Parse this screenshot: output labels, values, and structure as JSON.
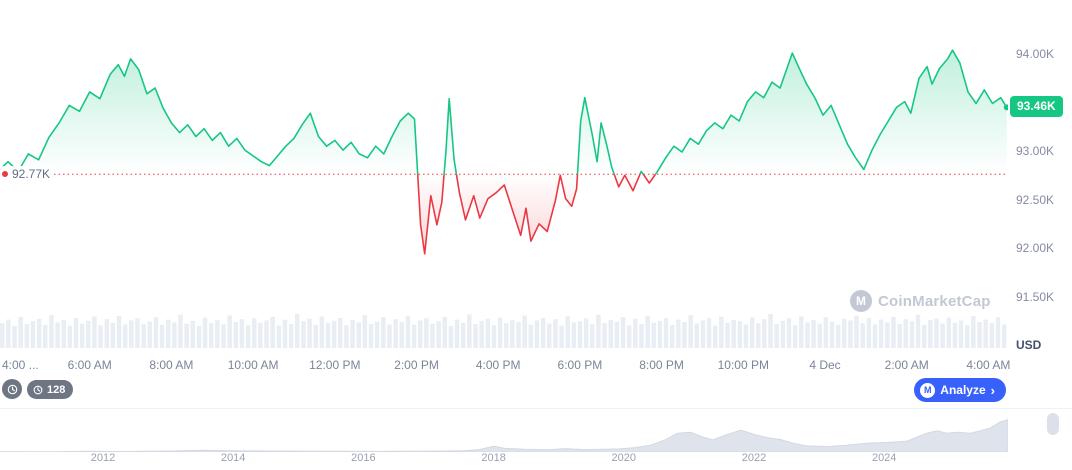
{
  "price": {
    "current_label": "93.46K",
    "current_value": 93.46,
    "baseline_label": "92.77K",
    "baseline_value": 92.77
  },
  "axis": {
    "y_labels": [
      "94.00K",
      "93.00K",
      "92.50K",
      "92.00K",
      "91.50K"
    ],
    "y_values": [
      94.0,
      93.0,
      92.5,
      92.0,
      91.5
    ],
    "unit_label": "USD",
    "x_labels": [
      "4:00 ...",
      "6:00 AM",
      "8:00 AM",
      "10:00 AM",
      "12:00 PM",
      "2:00 PM",
      "4:00 PM",
      "6:00 PM",
      "8:00 PM",
      "10:00 PM",
      "4 Dec",
      "2:00 AM",
      "4:00 AM"
    ]
  },
  "controls": {
    "history_count": "128",
    "analyze_label": "Analyze",
    "analyze_chevron": "›",
    "logo_letter": "M"
  },
  "watermark": {
    "text": "CoinMarketCap",
    "logo_letter": "M"
  },
  "colors": {
    "green": "#16C784",
    "red": "#EA3943",
    "blue": "#3861FB",
    "volume": "#E9EDF4",
    "nav_fill": "#DFE3EC",
    "axis_text": "#858CA2"
  },
  "chart_data": [
    {
      "type": "line",
      "title": "Intraday price (USD), 3 Dec 4:00 AM to 4 Dec 4:00 AM",
      "x_unit": "hours_from_4AM",
      "baseline": 92.77,
      "last_value": 93.46,
      "ylim": [
        91.3,
        94.3
      ],
      "x_ticks": [
        "4:00 ...",
        "6:00 AM",
        "8:00 AM",
        "10:00 AM",
        "12:00 PM",
        "2:00 PM",
        "4:00 PM",
        "6:00 PM",
        "8:00 PM",
        "10:00 PM",
        "4 Dec",
        "2:00 AM",
        "4:00 AM"
      ],
      "points": [
        [
          -0.2,
          92.82
        ],
        [
          0.0,
          92.9
        ],
        [
          0.25,
          92.8
        ],
        [
          0.5,
          92.98
        ],
        [
          0.75,
          92.92
        ],
        [
          1.0,
          93.15
        ],
        [
          1.25,
          93.3
        ],
        [
          1.5,
          93.48
        ],
        [
          1.75,
          93.42
        ],
        [
          2.0,
          93.62
        ],
        [
          2.25,
          93.55
        ],
        [
          2.5,
          93.8
        ],
        [
          2.7,
          93.9
        ],
        [
          2.85,
          93.78
        ],
        [
          3.0,
          93.96
        ],
        [
          3.2,
          93.85
        ],
        [
          3.4,
          93.6
        ],
        [
          3.6,
          93.66
        ],
        [
          3.8,
          93.45
        ],
        [
          4.0,
          93.3
        ],
        [
          4.2,
          93.2
        ],
        [
          4.4,
          93.28
        ],
        [
          4.6,
          93.16
        ],
        [
          4.8,
          93.24
        ],
        [
          5.0,
          93.12
        ],
        [
          5.2,
          93.2
        ],
        [
          5.4,
          93.06
        ],
        [
          5.6,
          93.14
        ],
        [
          5.8,
          93.02
        ],
        [
          6.0,
          92.96
        ],
        [
          6.2,
          92.9
        ],
        [
          6.4,
          92.86
        ],
        [
          6.6,
          92.96
        ],
        [
          6.8,
          93.06
        ],
        [
          7.0,
          93.14
        ],
        [
          7.2,
          93.28
        ],
        [
          7.4,
          93.4
        ],
        [
          7.6,
          93.16
        ],
        [
          7.8,
          93.06
        ],
        [
          8.0,
          93.12
        ],
        [
          8.2,
          93.02
        ],
        [
          8.4,
          93.1
        ],
        [
          8.6,
          92.98
        ],
        [
          8.8,
          92.94
        ],
        [
          9.0,
          93.06
        ],
        [
          9.2,
          92.98
        ],
        [
          9.4,
          93.16
        ],
        [
          9.6,
          93.32
        ],
        [
          9.8,
          93.4
        ],
        [
          9.95,
          93.34
        ],
        [
          10.1,
          92.25
        ],
        [
          10.2,
          91.95
        ],
        [
          10.35,
          92.55
        ],
        [
          10.5,
          92.25
        ],
        [
          10.62,
          92.48
        ],
        [
          10.72,
          93.0
        ],
        [
          10.8,
          93.55
        ],
        [
          10.92,
          92.92
        ],
        [
          11.05,
          92.58
        ],
        [
          11.2,
          92.3
        ],
        [
          11.4,
          92.55
        ],
        [
          11.55,
          92.32
        ],
        [
          11.75,
          92.52
        ],
        [
          11.95,
          92.58
        ],
        [
          12.15,
          92.66
        ],
        [
          12.35,
          92.4
        ],
        [
          12.55,
          92.14
        ],
        [
          12.68,
          92.42
        ],
        [
          12.8,
          92.08
        ],
        [
          13.0,
          92.26
        ],
        [
          13.2,
          92.18
        ],
        [
          13.4,
          92.5
        ],
        [
          13.52,
          92.76
        ],
        [
          13.65,
          92.52
        ],
        [
          13.8,
          92.44
        ],
        [
          13.92,
          92.62
        ],
        [
          14.02,
          93.32
        ],
        [
          14.12,
          93.56
        ],
        [
          14.3,
          93.18
        ],
        [
          14.42,
          92.9
        ],
        [
          14.52,
          93.3
        ],
        [
          14.65,
          93.08
        ],
        [
          14.78,
          92.84
        ],
        [
          14.95,
          92.64
        ],
        [
          15.1,
          92.76
        ],
        [
          15.3,
          92.6
        ],
        [
          15.5,
          92.8
        ],
        [
          15.7,
          92.68
        ],
        [
          15.9,
          92.8
        ],
        [
          16.1,
          92.94
        ],
        [
          16.3,
          93.06
        ],
        [
          16.5,
          93.0
        ],
        [
          16.7,
          93.14
        ],
        [
          16.9,
          93.08
        ],
        [
          17.1,
          93.22
        ],
        [
          17.3,
          93.3
        ],
        [
          17.5,
          93.24
        ],
        [
          17.7,
          93.38
        ],
        [
          17.9,
          93.32
        ],
        [
          18.1,
          93.52
        ],
        [
          18.3,
          93.62
        ],
        [
          18.5,
          93.56
        ],
        [
          18.7,
          93.72
        ],
        [
          18.9,
          93.66
        ],
        [
          19.05,
          93.84
        ],
        [
          19.2,
          94.02
        ],
        [
          19.35,
          93.88
        ],
        [
          19.55,
          93.7
        ],
        [
          19.75,
          93.56
        ],
        [
          19.95,
          93.38
        ],
        [
          20.15,
          93.48
        ],
        [
          20.35,
          93.28
        ],
        [
          20.55,
          93.08
        ],
        [
          20.75,
          92.94
        ],
        [
          20.95,
          92.82
        ],
        [
          21.15,
          93.02
        ],
        [
          21.35,
          93.18
        ],
        [
          21.55,
          93.32
        ],
        [
          21.75,
          93.46
        ],
        [
          21.95,
          93.52
        ],
        [
          22.1,
          93.4
        ],
        [
          22.3,
          93.76
        ],
        [
          22.5,
          93.88
        ],
        [
          22.62,
          93.7
        ],
        [
          22.8,
          93.86
        ],
        [
          23.0,
          93.96
        ],
        [
          23.12,
          94.05
        ],
        [
          23.3,
          93.92
        ],
        [
          23.5,
          93.62
        ],
        [
          23.7,
          93.5
        ],
        [
          23.9,
          93.64
        ],
        [
          24.1,
          93.5
        ],
        [
          24.3,
          93.56
        ],
        [
          24.45,
          93.46
        ]
      ]
    },
    {
      "type": "bar",
      "title": "volume",
      "values": [
        0.62,
        0.71,
        0.55,
        0.78,
        0.6,
        0.67,
        0.73,
        0.58,
        0.82,
        0.64,
        0.7,
        0.56,
        0.75,
        0.61,
        0.68,
        0.79,
        0.57,
        0.72,
        0.63,
        0.8,
        0.59,
        0.69,
        0.74,
        0.6,
        0.66,
        0.77,
        0.58,
        0.71,
        0.64,
        0.83,
        0.61,
        0.68,
        0.55,
        0.76,
        0.62,
        0.7,
        0.59,
        0.81,
        0.65,
        0.72,
        0.57,
        0.74,
        0.63,
        0.69,
        0.78,
        0.56,
        0.71,
        0.6,
        0.85,
        0.67,
        0.73,
        0.58,
        0.79,
        0.62,
        0.68,
        0.75,
        0.57,
        0.7,
        0.64,
        0.82,
        0.6,
        0.66,
        0.77,
        0.59,
        0.72,
        0.65,
        0.8,
        0.58,
        0.69,
        0.74,
        0.61,
        0.67,
        0.78,
        0.55,
        0.71,
        0.63,
        0.84,
        0.6,
        0.68,
        0.73,
        0.57,
        0.76,
        0.62,
        0.7,
        0.65,
        0.81,
        0.58,
        0.69,
        0.75,
        0.61,
        0.72,
        0.56,
        0.79,
        0.64,
        0.67,
        0.74,
        0.59,
        0.83,
        0.62,
        0.7,
        0.66,
        0.77,
        0.57,
        0.73,
        0.6,
        0.8,
        0.63,
        0.68,
        0.75,
        0.58,
        0.71,
        0.65,
        0.82,
        0.61,
        0.69,
        0.74,
        0.56,
        0.78,
        0.63,
        0.7,
        0.67,
        0.59,
        0.76,
        0.62,
        0.72,
        0.85,
        0.6,
        0.68,
        0.74,
        0.57,
        0.79,
        0.64,
        0.7,
        0.61,
        0.77,
        0.66,
        0.58,
        0.73,
        0.69,
        0.81,
        0.62,
        0.75,
        0.59,
        0.71,
        0.64,
        0.78,
        0.6,
        0.72,
        0.67,
        0.83,
        0.58,
        0.7,
        0.74,
        0.61,
        0.76,
        0.63,
        0.69,
        0.57,
        0.8,
        0.65,
        0.71,
        0.62,
        0.77,
        0.59
      ]
    },
    {
      "type": "area",
      "title": "all-time history navigator",
      "x_ticks": [
        "2012",
        "2014",
        "2016",
        "2018",
        "2020",
        "2022",
        "2024"
      ],
      "points": [
        [
          0.0,
          0.012
        ],
        [
          0.05,
          0.01
        ],
        [
          0.09,
          0.02
        ],
        [
          0.12,
          0.015
        ],
        [
          0.17,
          0.028
        ],
        [
          0.2,
          0.05
        ],
        [
          0.23,
          0.038
        ],
        [
          0.27,
          0.028
        ],
        [
          0.32,
          0.02
        ],
        [
          0.38,
          0.018
        ],
        [
          0.43,
          0.025
        ],
        [
          0.46,
          0.035
        ],
        [
          0.475,
          0.07
        ],
        [
          0.49,
          0.17
        ],
        [
          0.5,
          0.11
        ],
        [
          0.52,
          0.08
        ],
        [
          0.545,
          0.068
        ],
        [
          0.56,
          0.1
        ],
        [
          0.58,
          0.072
        ],
        [
          0.6,
          0.08
        ],
        [
          0.615,
          0.092
        ],
        [
          0.63,
          0.13
        ],
        [
          0.645,
          0.2
        ],
        [
          0.66,
          0.36
        ],
        [
          0.672,
          0.55
        ],
        [
          0.685,
          0.58
        ],
        [
          0.697,
          0.44
        ],
        [
          0.707,
          0.36
        ],
        [
          0.72,
          0.5
        ],
        [
          0.735,
          0.64
        ],
        [
          0.75,
          0.5
        ],
        [
          0.762,
          0.42
        ],
        [
          0.775,
          0.36
        ],
        [
          0.788,
          0.25
        ],
        [
          0.8,
          0.18
        ],
        [
          0.82,
          0.16
        ],
        [
          0.84,
          0.2
        ],
        [
          0.86,
          0.26
        ],
        [
          0.88,
          0.28
        ],
        [
          0.9,
          0.32
        ],
        [
          0.91,
          0.44
        ],
        [
          0.92,
          0.56
        ],
        [
          0.93,
          0.62
        ],
        [
          0.94,
          0.55
        ],
        [
          0.95,
          0.58
        ],
        [
          0.962,
          0.55
        ],
        [
          0.972,
          0.62
        ],
        [
          0.982,
          0.7
        ],
        [
          0.992,
          0.88
        ],
        [
          1.0,
          0.95
        ]
      ]
    }
  ]
}
